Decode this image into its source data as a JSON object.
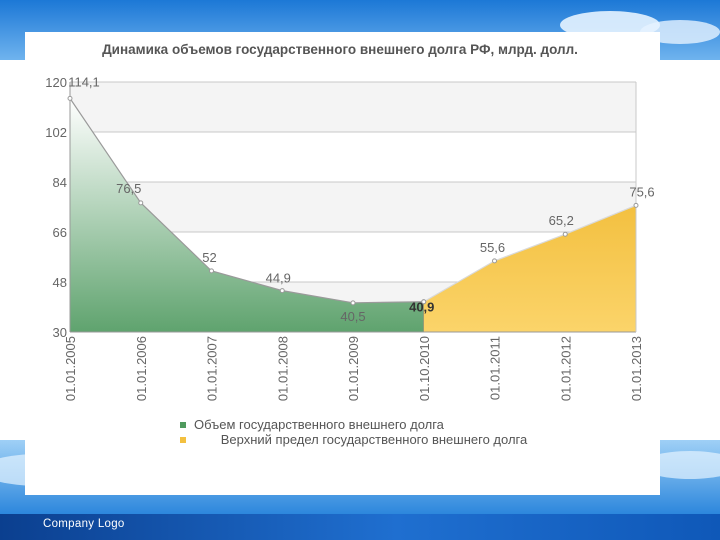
{
  "footer": {
    "company_logo": "Company  Logo"
  },
  "chart_data": {
    "type": "area",
    "title": "Динамика объемов государственного внешнего долга РФ, млрд. долл.",
    "xlabel": "",
    "ylabel": "",
    "ylim": [
      30,
      120
    ],
    "yticks": [
      "120",
      "102",
      "84",
      "66",
      "48",
      "30"
    ],
    "ytick_values": [
      120,
      102,
      84,
      66,
      48,
      30
    ],
    "categories": [
      "01.01.2005",
      "01.01.2006",
      "01.01.2007",
      "01.01.2008",
      "01.01.2009",
      "01.10.2010",
      "01.01.2011",
      "01.01.2012",
      "01.01.2013"
    ],
    "grid": true,
    "legend_position": "bottom",
    "series": [
      {
        "name": "Объем государственного внешнего долга",
        "color": "#4f9a5e",
        "values": [
          114.1,
          76.5,
          52,
          44.9,
          40.5,
          40.9,
          null,
          null,
          null
        ],
        "labels": [
          "114,1",
          "76,5",
          "52",
          "44,9",
          "40,5",
          "40,9",
          "",
          "",
          ""
        ]
      },
      {
        "name": "Верхний предел государственного внешнего долга",
        "color": "#f3c040",
        "values": [
          null,
          null,
          null,
          null,
          null,
          40.9,
          55.6,
          65.2,
          75.6
        ],
        "labels": [
          "",
          "",
          "",
          "",
          "",
          "",
          "55,6",
          "65,2",
          "75,6"
        ]
      }
    ]
  }
}
